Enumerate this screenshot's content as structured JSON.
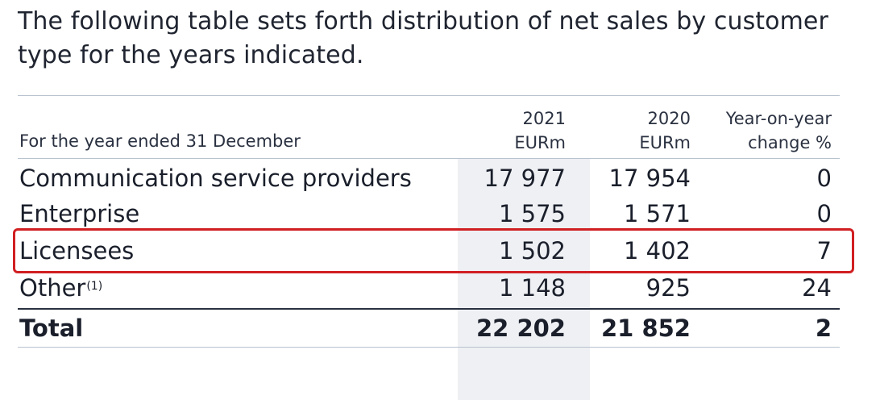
{
  "intro": {
    "line1": "The following table sets forth distribution of net sales by customer",
    "line2": "type for the years indicated."
  },
  "table": {
    "header": {
      "label": "For the year ended 31 December",
      "col2021_line1": "2021",
      "col2021_line2": "EURm",
      "col2020_line1": "2020",
      "col2020_line2": "EURm",
      "colchg_line1": "Year-on-year",
      "colchg_line2": "change %"
    },
    "rows": [
      {
        "label": "Communication service providers",
        "v2021": "17 977",
        "v2020": "17 954",
        "change": "0"
      },
      {
        "label": "Enterprise",
        "v2021": "1 575",
        "v2020": "1 571",
        "change": "0"
      },
      {
        "label": "Licensees",
        "v2021": "1 502",
        "v2020": "1 402",
        "change": "7"
      },
      {
        "label": "Other",
        "superscript": "(1)",
        "v2021": "1 148",
        "v2020": "925",
        "change": "24"
      }
    ],
    "total": {
      "label": "Total",
      "v2021": "22 202",
      "v2020": "21 852",
      "change": "2"
    }
  },
  "colors": {
    "highlight": "#d11f22",
    "shade": "#eef0f3",
    "rule": "#b9c2cf"
  }
}
